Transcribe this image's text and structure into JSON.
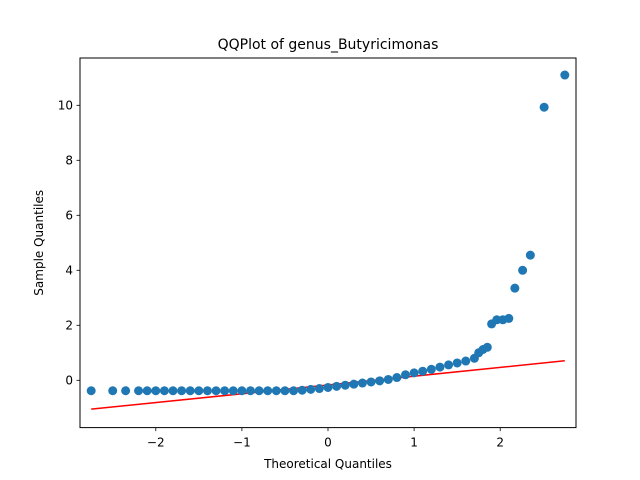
{
  "chart_data": {
    "type": "scatter",
    "title": "QQPlot of genus_Butyricimonas",
    "xlabel": "Theoretical Quantiles",
    "ylabel": "Sample Quantiles",
    "xlim": [
      -2.88,
      2.88
    ],
    "ylim": [
      -1.72,
      11.72
    ],
    "xticks": [
      -2,
      -1,
      0,
      1,
      2
    ],
    "yticks": [
      0,
      2,
      4,
      6,
      8,
      10
    ],
    "grid": false,
    "legend": "none",
    "colors": {
      "points": "#1f77b4",
      "line": "#ff0000"
    },
    "reference_line": {
      "x": [
        -2.75,
        2.75
      ],
      "y": [
        -1.05,
        0.71
      ]
    },
    "series": [
      {
        "values": [
          [
            -2.75,
            -0.38
          ],
          [
            -2.5,
            -0.38
          ],
          [
            -2.35,
            -0.38
          ],
          [
            -2.2,
            -0.38
          ],
          [
            -2.1,
            -0.38
          ],
          [
            -2.0,
            -0.38
          ],
          [
            -1.9,
            -0.38
          ],
          [
            -1.8,
            -0.38
          ],
          [
            -1.7,
            -0.38
          ],
          [
            -1.6,
            -0.38
          ],
          [
            -1.5,
            -0.38
          ],
          [
            -1.4,
            -0.38
          ],
          [
            -1.3,
            -0.38
          ],
          [
            -1.2,
            -0.38
          ],
          [
            -1.1,
            -0.38
          ],
          [
            -1.0,
            -0.38
          ],
          [
            -0.9,
            -0.38
          ],
          [
            -0.8,
            -0.38
          ],
          [
            -0.7,
            -0.38
          ],
          [
            -0.6,
            -0.38
          ],
          [
            -0.5,
            -0.38
          ],
          [
            -0.4,
            -0.38
          ],
          [
            -0.3,
            -0.36
          ],
          [
            -0.2,
            -0.33
          ],
          [
            -0.1,
            -0.3
          ],
          [
            0.0,
            -0.26
          ],
          [
            0.1,
            -0.22
          ],
          [
            0.2,
            -0.18
          ],
          [
            0.3,
            -0.14
          ],
          [
            0.4,
            -0.1
          ],
          [
            0.5,
            -0.06
          ],
          [
            0.6,
            -0.02
          ],
          [
            0.7,
            0.03
          ],
          [
            0.8,
            0.1
          ],
          [
            0.9,
            0.2
          ],
          [
            1.0,
            0.27
          ],
          [
            1.1,
            0.33
          ],
          [
            1.2,
            0.4
          ],
          [
            1.3,
            0.48
          ],
          [
            1.4,
            0.56
          ],
          [
            1.5,
            0.63
          ],
          [
            1.6,
            0.7
          ],
          [
            1.7,
            0.8
          ],
          [
            1.75,
            1.0
          ],
          [
            1.8,
            1.12
          ],
          [
            1.85,
            1.2
          ],
          [
            1.9,
            2.05
          ],
          [
            1.96,
            2.2
          ],
          [
            2.03,
            2.2
          ],
          [
            2.1,
            2.25
          ],
          [
            2.17,
            3.35
          ],
          [
            2.26,
            4.0
          ],
          [
            2.35,
            4.55
          ],
          [
            2.51,
            9.93
          ],
          [
            2.75,
            11.1
          ]
        ]
      }
    ]
  }
}
